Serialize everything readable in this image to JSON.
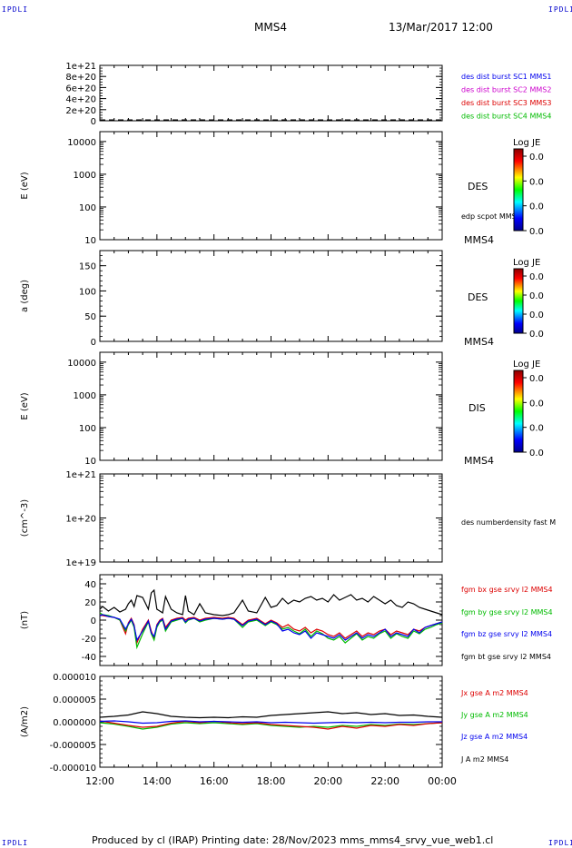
{
  "corner_labels": {
    "top_left": "IPDLI",
    "top_right": "IPDLI",
    "bottom_left": "IPDLI",
    "bottom_right": "IPDLI"
  },
  "header": {
    "spacecraft": "MMS4",
    "datetime": "13/Mar/2017 12:00"
  },
  "footer": {
    "text": "Produced by cl (IRAP)   Printing date: 28/Nov/2023   mms_mms4_srvy_vue_web1.cl"
  },
  "x_axis": {
    "tick_labels": [
      "12:00",
      "14:00",
      "16:00",
      "18:00",
      "20:00",
      "22:00",
      "00:00"
    ]
  },
  "colors": {
    "black": "#000000",
    "red": "#dd0000",
    "green": "#00bb00",
    "blue": "#0000ee",
    "magenta": "#cc00cc",
    "corner": "#0000cc"
  },
  "colorbar": {
    "title": "Log JE",
    "tick_labels": [
      "0.0",
      "0.0",
      "0.0",
      "0.0"
    ]
  },
  "chart_data": [
    {
      "type": "line",
      "name": "panel-1",
      "ylabel": "",
      "yticks": [
        "1e+21",
        "8e+20",
        "6e+20",
        "4e+20",
        "2e+20",
        "0"
      ],
      "ylim": [
        0,
        1e+21
      ],
      "series": [
        {
          "name": "des dist burst SC1 MMS1",
          "color": "#0000ee"
        },
        {
          "name": "des dist burst SC2 MMS2",
          "color": "#cc00cc"
        },
        {
          "name": "des dist burst SC3 MMS3",
          "color": "#dd0000"
        },
        {
          "name": "des dist burst SC4 MMS4",
          "color": "#00bb00"
        }
      ],
      "dashed_line_at": 0
    },
    {
      "type": "heatmap",
      "name": "panel-2",
      "ylabel": "E (eV)",
      "yticks": [
        "10000",
        "1000",
        "100",
        "10"
      ],
      "yscale": "log",
      "ylim": [
        10,
        20000
      ],
      "instrument": "DES",
      "annotation": "edp scpot MMS4",
      "spacecraft": "MMS4"
    },
    {
      "type": "heatmap",
      "name": "panel-3",
      "ylabel": "a (deg)",
      "yticks": [
        "150",
        "100",
        "50",
        "0"
      ],
      "ylim": [
        0,
        180
      ],
      "instrument": "DES",
      "spacecraft": "MMS4"
    },
    {
      "type": "heatmap",
      "name": "panel-4",
      "ylabel": "E (eV)",
      "yticks": [
        "10000",
        "1000",
        "100",
        "10"
      ],
      "yscale": "log",
      "ylim": [
        10,
        20000
      ],
      "instrument": "DIS",
      "spacecraft": "MMS4"
    },
    {
      "type": "line",
      "name": "panel-5",
      "ylabel": "(cm^-3)",
      "yticks": [
        "1e+21",
        "1e+20",
        "1e+19"
      ],
      "yscale": "log",
      "ylim": [
        1e+19,
        1e+21
      ],
      "series": [
        {
          "name": "des numberdensity fast M",
          "color": "#000000"
        }
      ]
    },
    {
      "type": "line",
      "name": "panel-6",
      "ylabel": "(nT)",
      "yticks": [
        "40",
        "20",
        "0",
        "-20",
        "-40"
      ],
      "ylim": [
        -50,
        50
      ],
      "x": [
        0,
        0.1,
        0.3,
        0.5,
        0.7,
        0.9,
        1.0,
        1.1,
        1.2,
        1.3,
        1.5,
        1.7,
        1.8,
        1.9,
        2.0,
        2.1,
        2.2,
        2.3,
        2.5,
        2.7,
        2.9,
        3.0,
        3.1,
        3.3,
        3.5,
        3.7,
        4.0,
        4.3,
        4.5,
        4.7,
        5.0,
        5.2,
        5.5,
        5.8,
        6.0,
        6.2,
        6.4,
        6.6,
        6.8,
        7.0,
        7.2,
        7.4,
        7.6,
        7.8,
        8.0,
        8.2,
        8.4,
        8.6,
        8.8,
        9.0,
        9.2,
        9.4,
        9.6,
        9.8,
        10.0,
        10.2,
        10.4,
        10.6,
        10.8,
        11.0,
        11.2,
        11.4,
        11.6,
        11.8,
        12.0
      ],
      "series": [
        {
          "name": "fgm bt gse srvy l2 MMS4",
          "color": "#000000",
          "values": [
            12,
            15,
            10,
            14,
            9,
            12,
            18,
            22,
            15,
            27,
            25,
            12,
            30,
            33,
            12,
            10,
            8,
            26,
            12,
            8,
            6,
            27,
            10,
            6,
            18,
            8,
            6,
            5,
            6,
            8,
            22,
            10,
            8,
            25,
            14,
            16,
            24,
            18,
            22,
            20,
            24,
            26,
            22,
            24,
            20,
            28,
            22,
            25,
            28,
            22,
            24,
            20,
            26,
            22,
            18,
            22,
            16,
            14,
            20,
            18,
            14,
            12,
            10,
            8,
            6
          ]
        },
        {
          "name": "fgm bx gse srvy l2 MMS4",
          "color": "#dd0000",
          "values": [
            6,
            5,
            4,
            3,
            0,
            -15,
            -3,
            2,
            -5,
            -25,
            -10,
            0,
            -12,
            -20,
            -5,
            0,
            2,
            -8,
            0,
            2,
            3,
            0,
            2,
            3,
            0,
            2,
            3,
            2,
            3,
            2,
            -5,
            0,
            2,
            -4,
            0,
            -3,
            -8,
            -5,
            -10,
            -12,
            -8,
            -14,
            -10,
            -12,
            -16,
            -18,
            -14,
            -20,
            -16,
            -12,
            -18,
            -14,
            -16,
            -12,
            -10,
            -16,
            -12,
            -14,
            -16,
            -10,
            -12,
            -8,
            -6,
            -4,
            -2
          ]
        },
        {
          "name": "fgm by gse srvy l2 MMS4",
          "color": "#00bb00",
          "values": [
            8,
            6,
            5,
            3,
            0,
            -12,
            -5,
            0,
            -8,
            -30,
            -15,
            -2,
            -15,
            -22,
            -8,
            -2,
            0,
            -12,
            -2,
            0,
            2,
            -3,
            0,
            2,
            -2,
            0,
            2,
            1,
            2,
            1,
            -8,
            -2,
            0,
            -6,
            -2,
            -5,
            -10,
            -8,
            -12,
            -15,
            -10,
            -18,
            -12,
            -15,
            -20,
            -22,
            -18,
            -25,
            -20,
            -15,
            -22,
            -18,
            -20,
            -15,
            -12,
            -20,
            -15,
            -18,
            -20,
            -12,
            -15,
            -10,
            -8,
            -5,
            -3
          ]
        },
        {
          "name": "fgm bz gse srvy l2 MMS4",
          "color": "#0000ee",
          "values": [
            5,
            6,
            4,
            3,
            1,
            -10,
            -4,
            1,
            -6,
            -22,
            -12,
            -1,
            -14,
            -18,
            -6,
            -1,
            1,
            -10,
            -1,
            1,
            2,
            -2,
            1,
            2,
            -1,
            1,
            2,
            1,
            2,
            1,
            -6,
            -1,
            1,
            -5,
            -1,
            -4,
            -12,
            -10,
            -14,
            -16,
            -12,
            -20,
            -14,
            -16,
            -18,
            -20,
            -16,
            -22,
            -18,
            -14,
            -20,
            -16,
            -18,
            -14,
            -10,
            -18,
            -14,
            -16,
            -18,
            -10,
            -14,
            -8,
            -6,
            -4,
            -2
          ]
        }
      ]
    },
    {
      "type": "line",
      "name": "panel-7",
      "ylabel": "(A/m2)",
      "yticks": [
        "0.000010",
        "0.000005",
        "0.000000",
        "-0.000005",
        "-0.000010"
      ],
      "ylim": [
        -1e-05,
        1e-05
      ],
      "x": [
        0,
        0.5,
        1.0,
        1.5,
        2.0,
        2.5,
        3.0,
        3.5,
        4.0,
        4.5,
        5.0,
        5.5,
        6.0,
        6.5,
        7.0,
        7.5,
        8.0,
        8.5,
        9.0,
        9.5,
        10.0,
        10.5,
        11.0,
        11.5,
        12.0
      ],
      "series": [
        {
          "name": "Jx gse A m2 MMS4",
          "color": "#dd0000",
          "values": [
            2e-07,
            -3e-07,
            -8e-07,
            -1.2e-06,
            -1e-06,
            -3e-07,
            1e-07,
            -2e-07,
            1e-07,
            -2e-07,
            -4e-07,
            -2e-07,
            -6e-07,
            -8e-07,
            -1e-06,
            -1.2e-06,
            -1.6e-06,
            -1e-06,
            -1.4e-06,
            -8e-07,
            -1e-06,
            -6e-07,
            -8e-07,
            -4e-07,
            -2e-07
          ]
        },
        {
          "name": "Jy gse A m2 MMS4",
          "color": "#00bb00",
          "values": [
            -2e-07,
            -5e-07,
            -1e-06,
            -1.6e-06,
            -1.2e-06,
            -5e-07,
            -2e-07,
            -4e-07,
            -2e-07,
            -4e-07,
            -6e-07,
            -4e-07,
            -8e-07,
            -1e-06,
            -1.2e-06,
            -1e-06,
            -1.2e-06,
            -8e-07,
            -1e-06,
            -6e-07,
            -8e-07,
            -5e-07,
            -6e-07,
            -4e-07,
            -2e-07
          ]
        },
        {
          "name": "Jz gse A m2 MMS4",
          "color": "#0000ee",
          "values": [
            1e-07,
            2e-07,
            0.0,
            -3e-07,
            -2e-07,
            1e-07,
            2e-07,
            0.0,
            1e-07,
            0.0,
            -1e-07,
            0.0,
            -2e-07,
            -1e-07,
            -2e-07,
            -3e-07,
            -2e-07,
            -1e-07,
            -2e-07,
            -1e-07,
            -2e-07,
            -1e-07,
            -1e-07,
            0.0,
            0.0
          ]
        },
        {
          "name": "J A m2 MMS4",
          "color": "#000000",
          "values": [
            1e-06,
            1.2e-06,
            1.5e-06,
            2.2e-06,
            1.8e-06,
            1.2e-06,
            1e-06,
            9e-07,
            1e-06,
            9e-07,
            1.1e-06,
            1e-06,
            1.4e-06,
            1.6e-06,
            1.8e-06,
            2e-06,
            2.2e-06,
            1.8e-06,
            2e-06,
            1.6e-06,
            1.8e-06,
            1.4e-06,
            1.5e-06,
            1.2e-06,
            1e-06
          ]
        }
      ]
    }
  ]
}
